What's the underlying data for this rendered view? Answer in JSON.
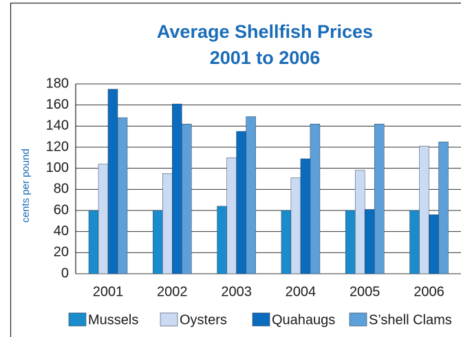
{
  "chart_data": {
    "type": "bar",
    "title": [
      "Average Shellfish Prices",
      "2001 to 2006"
    ],
    "y_label": "cents per pound",
    "categories": [
      "2001",
      "2002",
      "2003",
      "2004",
      "2005",
      "2006"
    ],
    "series": [
      {
        "name": "Mussels",
        "color": "#1a8ccc",
        "values": [
          60,
          60,
          64,
          60,
          60,
          60
        ]
      },
      {
        "name": "Oysters",
        "color": "#c9daf2",
        "values": [
          104,
          95,
          110,
          91,
          98,
          121
        ]
      },
      {
        "name": "Quahaugs",
        "color": "#0b6bbd",
        "values": [
          175,
          161,
          135,
          109,
          61,
          56
        ]
      },
      {
        "name": "S’shell Clams",
        "color": "#5c9fd9",
        "values": [
          148,
          142,
          149,
          142,
          142,
          125
        ]
      }
    ],
    "ylim": [
      0,
      180
    ],
    "yticks": [
      0,
      20,
      40,
      60,
      80,
      100,
      120,
      140,
      160,
      180
    ],
    "grid": true
  }
}
